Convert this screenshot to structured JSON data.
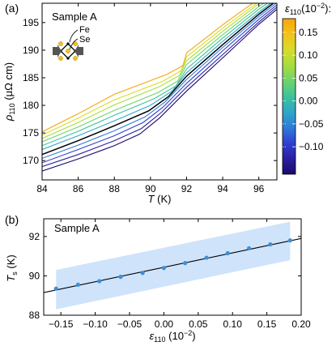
{
  "chart_data": [
    {
      "type": "line",
      "panel_label": "(a)",
      "annotation": "Sample A",
      "xlabel": "T (K)",
      "xlabel_main": "T",
      "xlabel_unit": " (K)",
      "ylabel_main": "ρ",
      "ylabel_sub": "110",
      "ylabel_unit": " (μΩ cm)",
      "xlim": [
        84,
        97
      ],
      "ylim": [
        166.5,
        198.5
      ],
      "xticks": [
        "84",
        "86",
        "88",
        "90",
        "92",
        "94",
        "96"
      ],
      "yticks": [
        "170",
        "175",
        "180",
        "185",
        "190",
        "195"
      ],
      "inset_labels": [
        "Fe",
        "Se"
      ],
      "colorbar": {
        "label_main": "ε",
        "label_sub": "110",
        "label_unit": "(10",
        "label_exp": "−2",
        "label_tail": "):",
        "range": [
          -0.16,
          0.18
        ],
        "ticks": [
          "0.15",
          "0.10",
          "0.05",
          "0.00",
          "−0.05",
          "−0.10"
        ],
        "colors": [
          "#1a0a6b",
          "#2a1fa0",
          "#2f3fd0",
          "#2e7bd8",
          "#2fa7c8",
          "#3cc39b",
          "#6fd36b",
          "#a8dd3e",
          "#d6dc2c",
          "#f3c21a",
          "#f5a50f"
        ]
      },
      "series": [
        {
          "strain": -0.157,
          "color": "#1a0a6b",
          "x": [
            84,
            86,
            88,
            89.4,
            90.5,
            92,
            94,
            96,
            97
          ],
          "y": [
            168.1,
            170.3,
            172.7,
            174.8,
            177.7,
            182.6,
            188.6,
            194.7,
            197.4
          ]
        },
        {
          "strain": -0.125,
          "color": "#2a1fa0",
          "x": [
            84,
            86,
            88,
            89.5,
            90.6,
            92,
            94,
            96,
            97
          ],
          "y": [
            168.9,
            171.1,
            173.6,
            175.8,
            178.7,
            183.3,
            189.2,
            195.1,
            197.8
          ]
        },
        {
          "strain": -0.094,
          "color": "#2f3fd0",
          "x": [
            84,
            86,
            88,
            89.6,
            90.7,
            92,
            94,
            96,
            97
          ],
          "y": [
            169.6,
            172.0,
            174.5,
            176.9,
            179.7,
            184.0,
            189.9,
            195.6,
            198.2
          ]
        },
        {
          "strain": -0.063,
          "color": "#2e7bd8",
          "x": [
            84,
            86,
            88,
            89.7,
            90.8,
            92,
            94,
            96,
            97
          ],
          "y": [
            170.4,
            172.8,
            175.4,
            177.9,
            180.6,
            184.7,
            190.5,
            196.1,
            198.6
          ]
        },
        {
          "strain": 0.0,
          "color": "#000000",
          "x": [
            84,
            86,
            88,
            89.9,
            91.0,
            92,
            94,
            96,
            97
          ],
          "y": [
            171.1,
            173.6,
            176.3,
            179.0,
            181.6,
            185.3,
            191.0,
            196.5,
            199.0
          ]
        },
        {
          "strain": 0.031,
          "color": "#2fa7c8",
          "x": [
            84,
            86,
            88,
            90.0,
            91.2,
            92,
            94,
            96,
            97
          ],
          "y": [
            172.0,
            174.5,
            177.2,
            180.0,
            182.6,
            185.9,
            191.6,
            196.9,
            199.3
          ]
        },
        {
          "strain": 0.062,
          "color": "#3cc39b",
          "x": [
            84,
            86,
            88,
            90.2,
            91.4,
            92,
            94,
            96,
            97
          ],
          "y": [
            172.7,
            175.3,
            178.2,
            181.2,
            183.5,
            186.6,
            192.2,
            197.4,
            199.7
          ]
        },
        {
          "strain": 0.093,
          "color": "#6fd36b",
          "x": [
            84,
            86,
            88,
            90.4,
            91.5,
            92,
            94,
            96,
            97
          ],
          "y": [
            173.4,
            176.1,
            179.1,
            182.3,
            184.4,
            187.4,
            192.8,
            197.9,
            200.1
          ]
        },
        {
          "strain": 0.124,
          "color": "#a8dd3e",
          "x": [
            84,
            86,
            88,
            90.5,
            91.6,
            92,
            94,
            96,
            97
          ],
          "y": [
            174.0,
            176.9,
            180.1,
            183.4,
            185.4,
            188.1,
            193.4,
            198.4,
            200.5
          ]
        },
        {
          "strain": 0.155,
          "color": "#d6dc2c",
          "x": [
            84,
            86,
            88,
            90.7,
            91.7,
            92,
            94,
            96,
            97
          ],
          "y": [
            174.6,
            177.7,
            181.0,
            184.4,
            186.3,
            188.8,
            194.0,
            198.8,
            200.9
          ]
        },
        {
          "strain": 0.184,
          "color": "#f5a50f",
          "x": [
            84,
            86,
            88,
            90.9,
            91.8,
            92,
            94,
            96,
            97
          ],
          "y": [
            175.2,
            178.5,
            182.0,
            185.6,
            187.2,
            189.5,
            194.6,
            199.3,
            201.3
          ]
        }
      ]
    },
    {
      "type": "scatter",
      "panel_label": "(b)",
      "annotation": "Sample A",
      "xlabel_main": "ε",
      "xlabel_sub": "110",
      "xlabel_unit": " (10",
      "xlabel_exp": "−2",
      "xlabel_tail": ")",
      "ylabel_main": "T",
      "ylabel_sub": "s",
      "ylabel_unit": " (K)",
      "xlim": [
        -0.175,
        0.2
      ],
      "ylim": [
        88,
        92.9
      ],
      "xticks": [
        "−0.15",
        "−0.10",
        "−0.05",
        "0.00",
        "0.05",
        "0.10",
        "0.15",
        "0.20"
      ],
      "xtick_values": [
        -0.15,
        -0.1,
        -0.05,
        0.0,
        0.05,
        0.1,
        0.15,
        0.2
      ],
      "yticks": [
        "88",
        "90",
        "92"
      ],
      "ytick_values": [
        88,
        90,
        92
      ],
      "points": {
        "x": [
          -0.157,
          -0.125,
          -0.094,
          -0.063,
          -0.031,
          0.0,
          0.031,
          0.062,
          0.093,
          0.124,
          0.155,
          0.184
        ],
        "y": [
          89.35,
          89.55,
          89.73,
          89.95,
          90.15,
          90.4,
          90.65,
          90.92,
          91.15,
          91.4,
          91.6,
          91.8
        ]
      },
      "fit_line": {
        "x": [
          -0.175,
          0.2
        ],
        "y": [
          89.15,
          91.9
        ]
      },
      "band": {
        "x": [
          -0.157,
          0.184
        ],
        "upper": [
          90.3,
          92.75
        ],
        "lower": [
          88.3,
          90.8
        ]
      },
      "point_color": "#3b8fd9",
      "band_color": "#cfe3fb"
    }
  ]
}
